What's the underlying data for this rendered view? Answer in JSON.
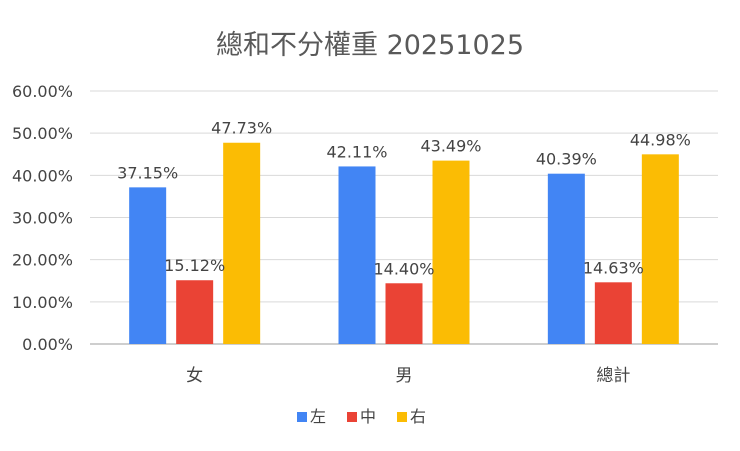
{
  "chart_data": {
    "type": "bar",
    "title": "總和不分權重 20251025",
    "categories": [
      "女",
      "男",
      "總計"
    ],
    "series": [
      {
        "name": "左",
        "color": "#4285F4",
        "values": [
          37.15,
          42.11,
          40.39
        ],
        "labels": [
          "37.15%",
          "42.11%",
          "40.39%"
        ]
      },
      {
        "name": "中",
        "color": "#EA4335",
        "values": [
          15.12,
          14.4,
          14.63
        ],
        "labels": [
          "15.12%",
          "14.40%",
          "14.63%"
        ]
      },
      {
        "name": "右",
        "color": "#FBBC04",
        "values": [
          47.73,
          43.49,
          44.98
        ],
        "labels": [
          "47.73%",
          "43.49%",
          "44.98%"
        ]
      }
    ],
    "ylim": [
      0,
      60
    ],
    "yticks": [
      0,
      10,
      20,
      30,
      40,
      50,
      60
    ],
    "ytick_labels": [
      "0.00%",
      "10.00%",
      "20.00%",
      "30.00%",
      "40.00%",
      "50.00%",
      "60.00%"
    ],
    "grid": true,
    "legend_position": "bottom"
  }
}
